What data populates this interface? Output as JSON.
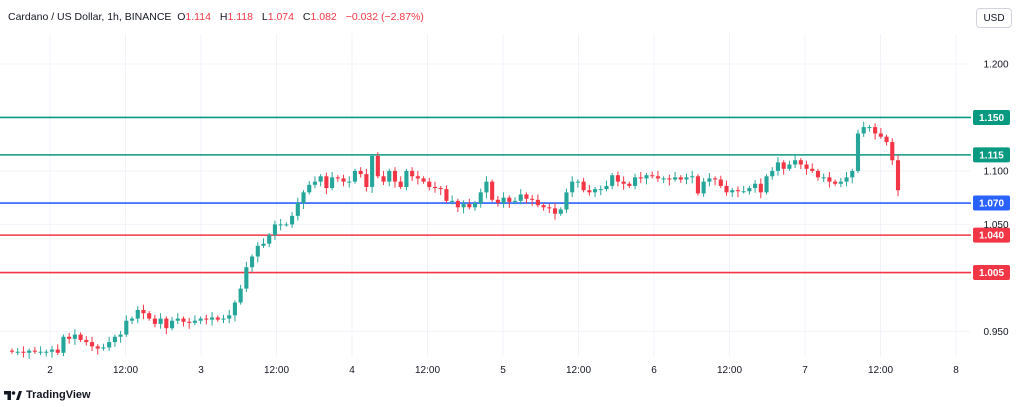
{
  "header": {
    "symbol": "Cardano / US Dollar, 1h, BINANCE",
    "ohlc": [
      {
        "k": "O",
        "v": "1.114"
      },
      {
        "k": "H",
        "v": "1.118"
      },
      {
        "k": "L",
        "v": "1.074"
      },
      {
        "k": "C",
        "v": "1.082"
      }
    ],
    "change": "−0.032 (−2.87%)"
  },
  "currency_label": "USD",
  "brand": "TradingView",
  "colors": {
    "up": "#26a69a",
    "down": "#f23645",
    "grid": "#f0f3fa",
    "text": "#131722"
  },
  "chart_data": {
    "type": "candlestick",
    "y_range": [
      0.927,
      1.228
    ],
    "y_ticks": [
      {
        "value": 0.95,
        "label": "0.950"
      },
      {
        "value": 1.05,
        "label": "1.050"
      },
      {
        "value": 1.1,
        "label": "1.100"
      },
      {
        "value": 1.2,
        "label": "1.200"
      }
    ],
    "x_ticks": [
      "2",
      "12:00",
      "3",
      "12:00",
      "4",
      "12:00",
      "5",
      "12:00",
      "6",
      "12:00",
      "7",
      "12:00",
      "8"
    ],
    "horizontal_levels": [
      {
        "value": 1.15,
        "label": "1.150",
        "color": "#089981"
      },
      {
        "value": 1.115,
        "label": "1.115",
        "color": "#089981"
      },
      {
        "value": 1.07,
        "label": "1.070",
        "color": "#2962ff"
      },
      {
        "value": 1.04,
        "label": "1.040",
        "color": "#f23645"
      },
      {
        "value": 1.005,
        "label": "1.005",
        "color": "#f23645"
      }
    ],
    "close_series": [
      0.931,
      0.931,
      0.93,
      0.932,
      0.931,
      0.931,
      0.931,
      0.933,
      0.93,
      0.945,
      0.943,
      0.947,
      0.942,
      0.94,
      0.936,
      0.934,
      0.935,
      0.94,
      0.945,
      0.947,
      0.96,
      0.962,
      0.97,
      0.967,
      0.962,
      0.957,
      0.962,
      0.953,
      0.96,
      0.962,
      0.959,
      0.958,
      0.96,
      0.962,
      0.961,
      0.963,
      0.961,
      0.962,
      0.965,
      0.977,
      0.99,
      1.01,
      1.02,
      1.03,
      1.032,
      1.04,
      1.05,
      1.05,
      1.05,
      1.058,
      1.07,
      1.08,
      1.087,
      1.09,
      1.095,
      1.084,
      1.094,
      1.093,
      1.09,
      1.09,
      1.1,
      1.097,
      1.085,
      1.114,
      1.095,
      1.09,
      1.1,
      1.09,
      1.085,
      1.1,
      1.095,
      1.093,
      1.09,
      1.085,
      1.084,
      1.083,
      1.072,
      1.072,
      1.066,
      1.069,
      1.066,
      1.07,
      1.08,
      1.09,
      1.073,
      1.07,
      1.075,
      1.071,
      1.072,
      1.078,
      1.074,
      1.073,
      1.068,
      1.066,
      1.065,
      1.06,
      1.064,
      1.08,
      1.09,
      1.09,
      1.082,
      1.08,
      1.083,
      1.083,
      1.086,
      1.096,
      1.09,
      1.088,
      1.086,
      1.094,
      1.093,
      1.096,
      1.095,
      1.093,
      1.093,
      1.092,
      1.094,
      1.092,
      1.094,
      1.095,
      1.079,
      1.09,
      1.093,
      1.092,
      1.086,
      1.08,
      1.082,
      1.081,
      1.081,
      1.084,
      1.088,
      1.08,
      1.095,
      1.1,
      1.108,
      1.102,
      1.106,
      1.11,
      1.106,
      1.102,
      1.1,
      1.094,
      1.094,
      1.09,
      1.088,
      1.09,
      1.094,
      1.1,
      1.135,
      1.141,
      1.141,
      1.135,
      1.132,
      1.127,
      1.11,
      1.082
    ]
  }
}
